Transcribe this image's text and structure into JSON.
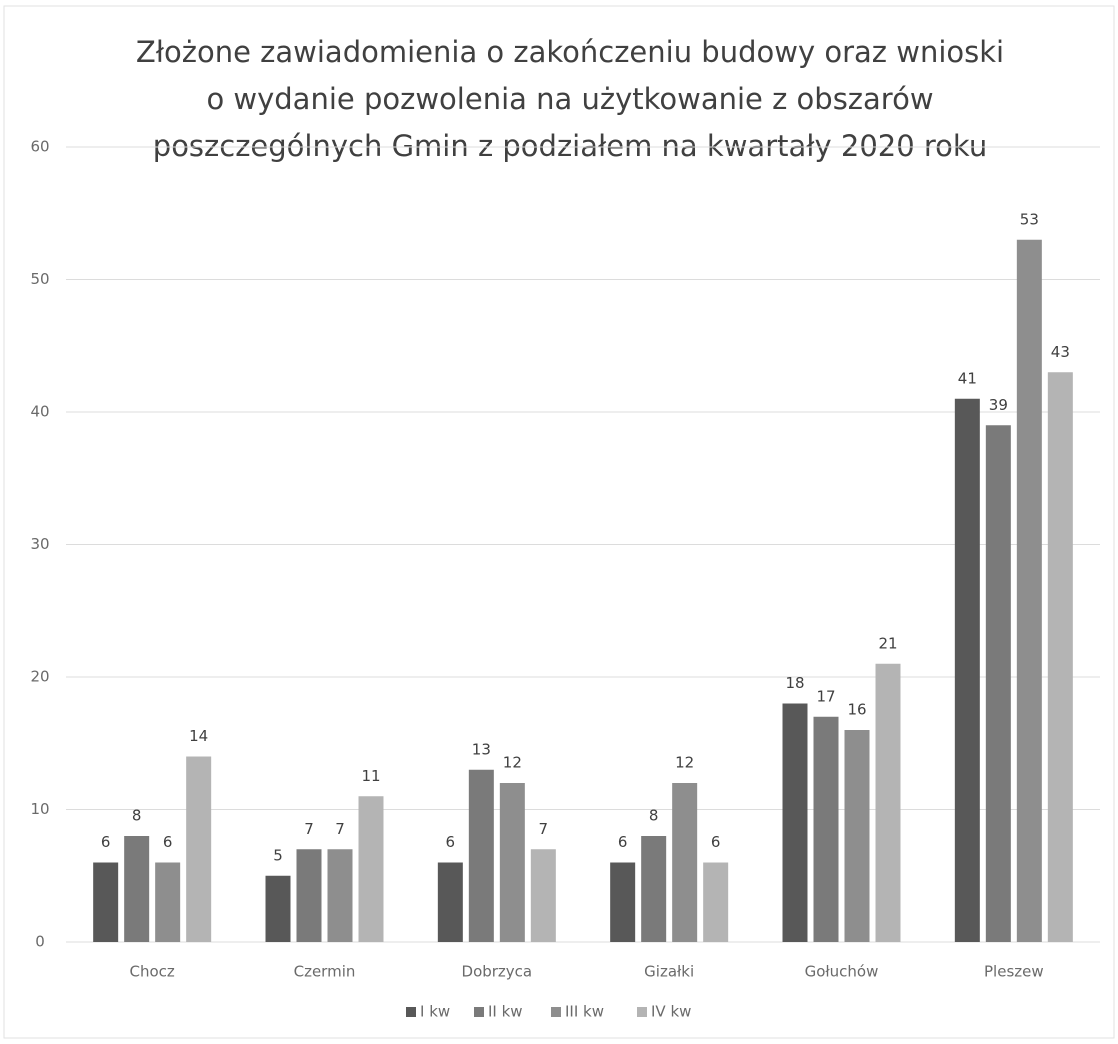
{
  "chart_data": {
    "type": "bar",
    "title": [
      "Złożone zawiadomienia o zakończeniu budowy oraz wnioski",
      "o wydanie pozwolenia na użytkowanie z obszarów",
      "poszczególnych Gmin z podziałem na kwartały 2020 roku"
    ],
    "categories": [
      "Chocz",
      "Czermin",
      "Dobrzyca",
      "Gizałki",
      "Gołuchów",
      "Pleszew"
    ],
    "series": [
      {
        "name": "I kw",
        "color": "#585858",
        "values": [
          6,
          5,
          6,
          6,
          18,
          41
        ]
      },
      {
        "name": "II kw",
        "color": "#7a7a7a",
        "values": [
          8,
          7,
          13,
          8,
          17,
          39
        ]
      },
      {
        "name": "III kw",
        "color": "#8e8e8e",
        "values": [
          6,
          7,
          12,
          12,
          16,
          53
        ]
      },
      {
        "name": "IV kw",
        "color": "#b4b4b4",
        "values": [
          14,
          11,
          7,
          6,
          21,
          43
        ]
      }
    ],
    "ylim": [
      0,
      60
    ],
    "yticks": [
      0,
      10,
      20,
      30,
      40,
      50,
      60
    ],
    "grid": true,
    "legend": "bottom"
  }
}
